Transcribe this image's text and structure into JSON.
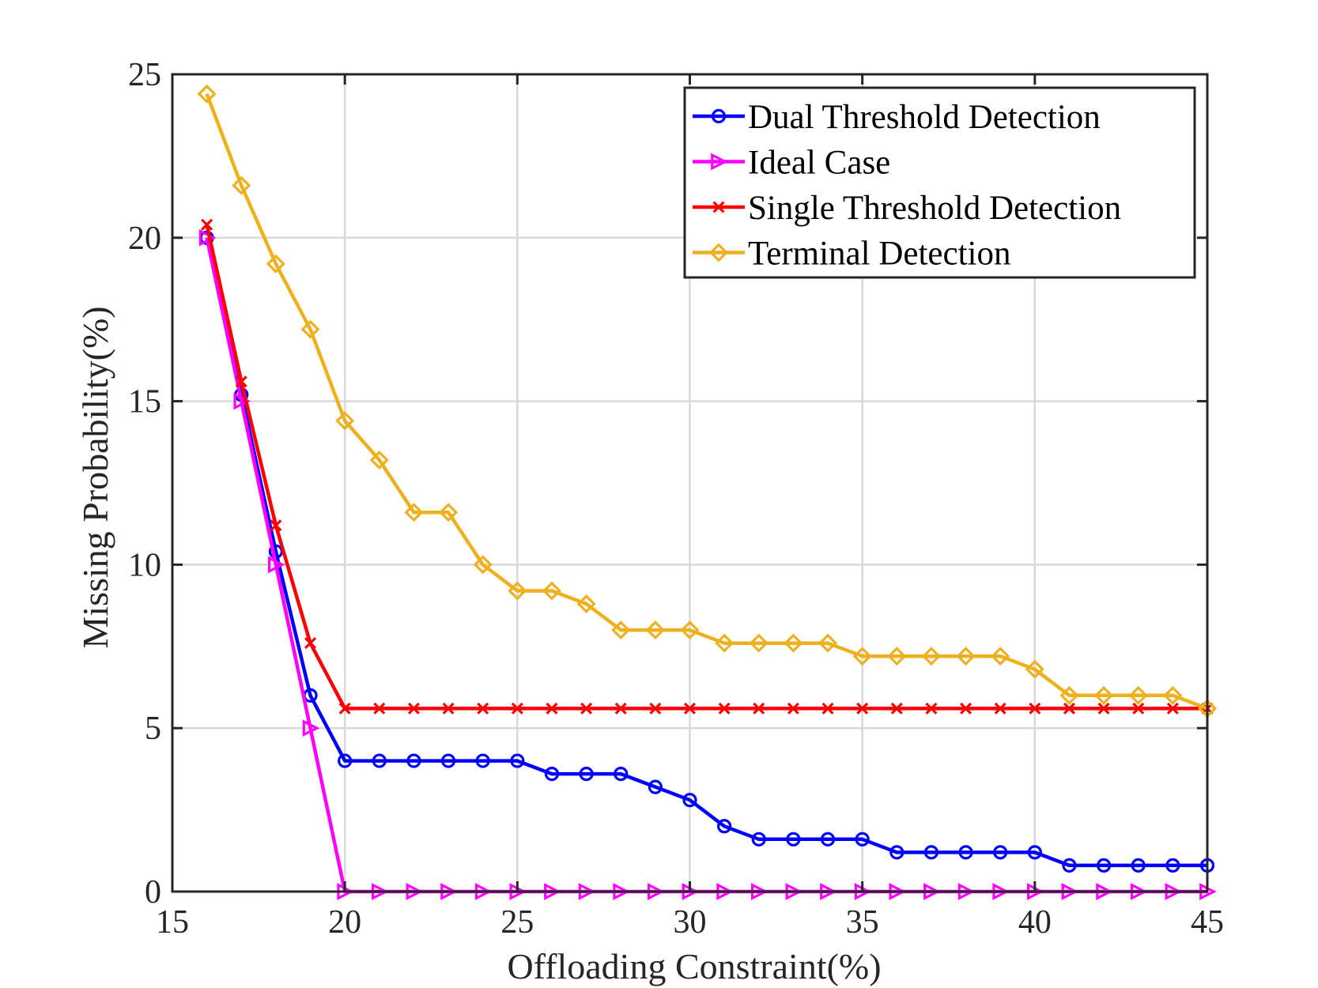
{
  "chart_data": {
    "type": "line",
    "title": "",
    "xlabel": "Offloading Constraint(%)",
    "ylabel": "Missing Probability(%)",
    "xlim": [
      15,
      45
    ],
    "ylim": [
      0,
      25
    ],
    "xticks": [
      15,
      20,
      25,
      30,
      35,
      40,
      45
    ],
    "yticks": [
      0,
      5,
      10,
      15,
      20,
      25
    ],
    "grid": true,
    "legend_position": "top-right",
    "x": [
      16,
      17,
      18,
      19,
      20,
      21,
      22,
      23,
      24,
      25,
      26,
      27,
      28,
      29,
      30,
      31,
      32,
      33,
      34,
      35,
      36,
      37,
      38,
      39,
      40,
      41,
      42,
      43,
      44,
      45
    ],
    "series": [
      {
        "name": "Dual Threshold Detection",
        "color": "#0000ff",
        "marker": "circle",
        "values": [
          20.0,
          15.2,
          10.4,
          6.0,
          4.0,
          4.0,
          4.0,
          4.0,
          4.0,
          4.0,
          3.6,
          3.6,
          3.6,
          3.2,
          2.8,
          2.0,
          1.6,
          1.6,
          1.6,
          1.6,
          1.2,
          1.2,
          1.2,
          1.2,
          1.2,
          0.8,
          0.8,
          0.8,
          0.8,
          0.8
        ]
      },
      {
        "name": "Ideal Case",
        "color": "#ff00ff",
        "marker": "triangle-right",
        "values": [
          20.0,
          15.0,
          10.0,
          5.0,
          0,
          0,
          0,
          0,
          0,
          0,
          0,
          0,
          0,
          0,
          0,
          0,
          0,
          0,
          0,
          0,
          0,
          0,
          0,
          0,
          0,
          0,
          0,
          0,
          0,
          0
        ]
      },
      {
        "name": "Single Threshold Detection",
        "color": "#ff0000",
        "marker": "x",
        "values": [
          20.4,
          15.6,
          11.2,
          7.6,
          5.6,
          5.6,
          5.6,
          5.6,
          5.6,
          5.6,
          5.6,
          5.6,
          5.6,
          5.6,
          5.6,
          5.6,
          5.6,
          5.6,
          5.6,
          5.6,
          5.6,
          5.6,
          5.6,
          5.6,
          5.6,
          5.6,
          5.6,
          5.6,
          5.6,
          5.6
        ]
      },
      {
        "name": "Terminal Detection",
        "color": "#edb120",
        "marker": "diamond",
        "values": [
          24.4,
          21.6,
          19.2,
          17.2,
          14.4,
          13.2,
          11.6,
          11.6,
          10.0,
          9.2,
          9.2,
          8.8,
          8.0,
          8.0,
          8.0,
          7.6,
          7.6,
          7.6,
          7.6,
          7.2,
          7.2,
          7.2,
          7.2,
          7.2,
          6.8,
          6.0,
          6.0,
          6.0,
          6.0,
          5.6
        ]
      }
    ]
  }
}
